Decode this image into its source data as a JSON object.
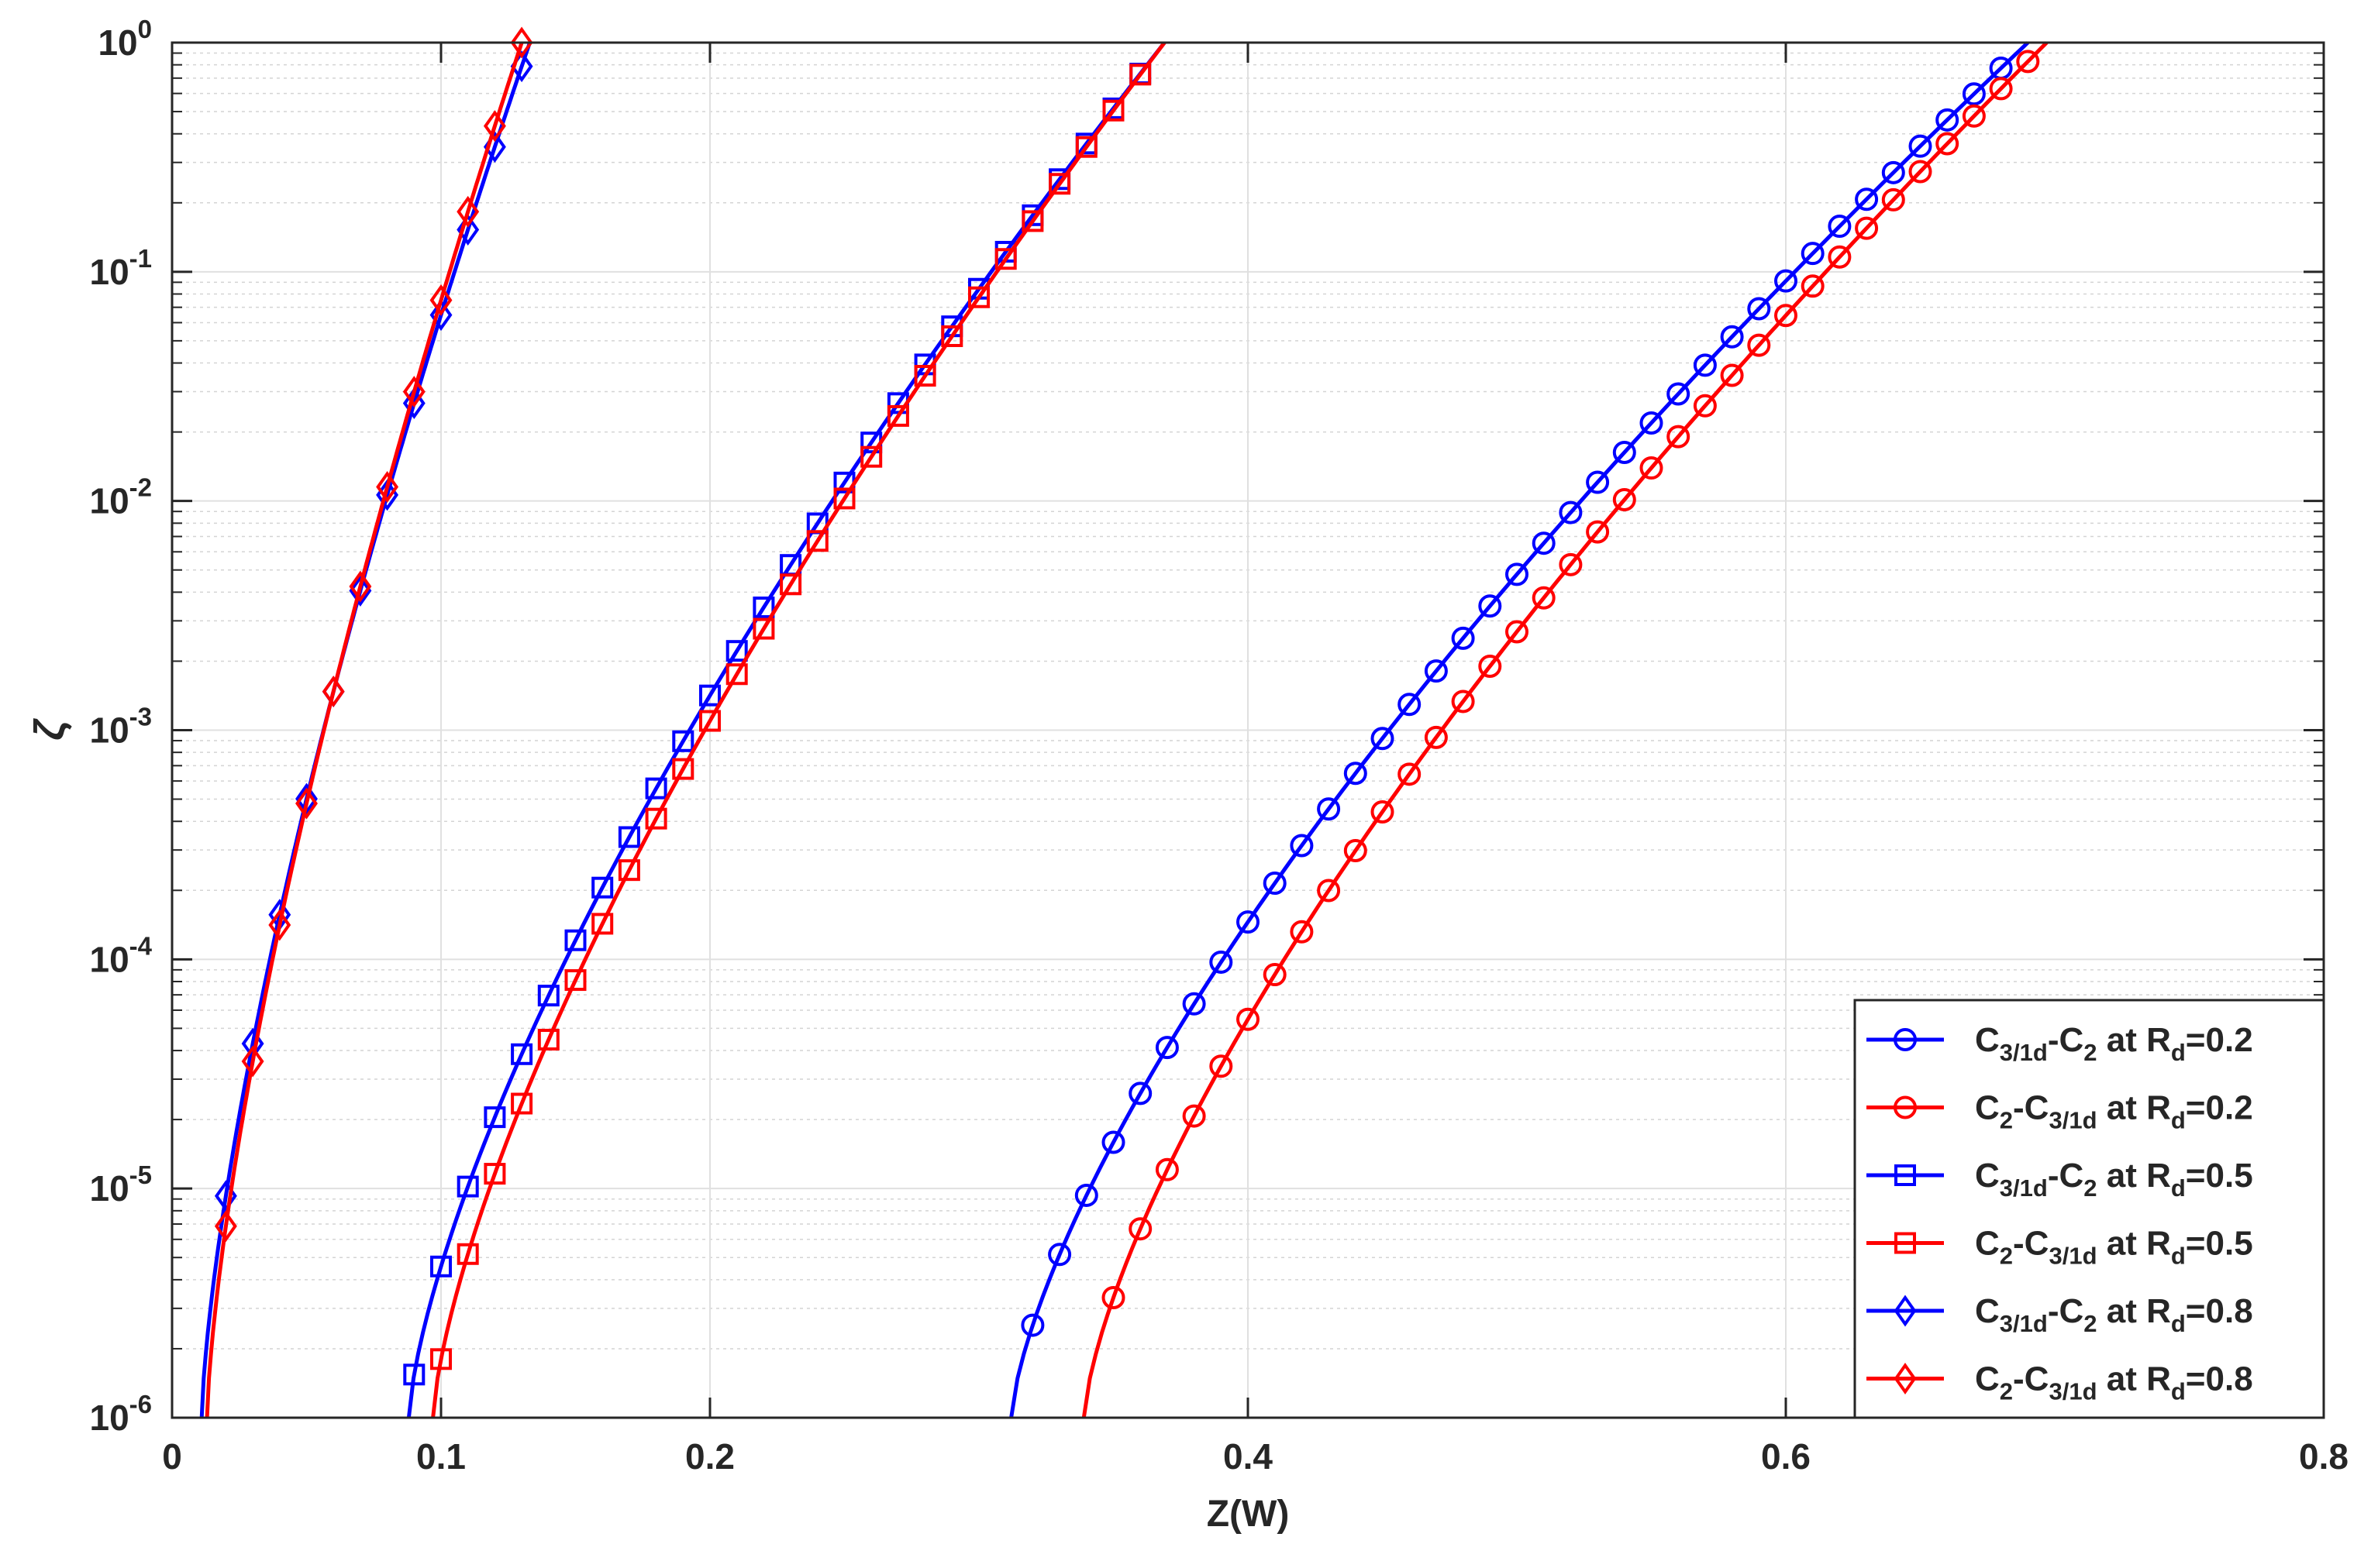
{
  "chart_data": {
    "type": "line",
    "title": "",
    "xlabel": "Z(W)",
    "ylabel": "ζ",
    "xlim": [
      0,
      0.8
    ],
    "ylim_log10": [
      -6,
      0
    ],
    "y_scale": "log",
    "grid": true,
    "minor_grid": true,
    "legend_position": "bottom-right",
    "x_ticks": [
      0,
      0.1,
      0.2,
      0.4,
      0.6,
      0.8
    ],
    "x_tick_labels": [
      "0",
      "0.1",
      "0.2",
      "0.4",
      "0.6",
      "0.8"
    ],
    "y_ticks": [
      -6,
      -5,
      -4,
      -3,
      -2,
      -1,
      0
    ],
    "y_tick_base": "10",
    "y_tick_exponents": [
      "-6",
      "-5",
      "-4",
      "-3",
      "-2",
      "-1",
      "0"
    ],
    "series": [
      {
        "name": "C3/1d-C2 at Rd=0.2",
        "legend": {
          "a": "C",
          "a_sub": "3/1d",
          "b": "-C",
          "b_sub": "2",
          "c": " at R",
          "c_sub": "d",
          "d": "=0.2"
        },
        "color": "#0000ff",
        "marker": "circle",
        "x_range": [
          0.312,
          0.69
        ],
        "log_y_range": [
          -6,
          0
        ],
        "marker_x": [
          0.32,
          0.33,
          0.34,
          0.35,
          0.36,
          0.37,
          0.38,
          0.39,
          0.4,
          0.41,
          0.42,
          0.43,
          0.44,
          0.45,
          0.46,
          0.47,
          0.48,
          0.49,
          0.5,
          0.51,
          0.52,
          0.53,
          0.54,
          0.55,
          0.56,
          0.57,
          0.58,
          0.59,
          0.6,
          0.61,
          0.62,
          0.63,
          0.64,
          0.65,
          0.66,
          0.67,
          0.68
        ]
      },
      {
        "name": "C2-C3/1d at Rd=0.2",
        "legend": {
          "a": "C",
          "a_sub": "2",
          "b": "-C",
          "b_sub": "3/1d",
          "c": " at R",
          "c_sub": "d",
          "d": "=0.2"
        },
        "color": "#ff0000",
        "marker": "circle",
        "x_range": [
          0.339,
          0.697
        ],
        "log_y_range": [
          -6,
          0
        ],
        "marker_x": [
          0.35,
          0.36,
          0.37,
          0.38,
          0.39,
          0.4,
          0.41,
          0.42,
          0.43,
          0.44,
          0.45,
          0.46,
          0.47,
          0.48,
          0.49,
          0.5,
          0.51,
          0.52,
          0.53,
          0.54,
          0.55,
          0.56,
          0.57,
          0.58,
          0.59,
          0.6,
          0.61,
          0.62,
          0.63,
          0.64,
          0.65,
          0.66,
          0.67,
          0.68,
          0.69
        ]
      },
      {
        "name": "C3/1d-C2 at Rd=0.5",
        "legend": {
          "a": "C",
          "a_sub": "3/1d",
          "b": "-C",
          "b_sub": "2",
          "c": " at R",
          "c_sub": "d",
          "d": "=0.5"
        },
        "color": "#0000ff",
        "marker": "square",
        "x_range": [
          0.088,
          0.369
        ],
        "log_y_range": [
          -6,
          0
        ],
        "marker_x": [
          0.09,
          0.1,
          0.11,
          0.12,
          0.13,
          0.14,
          0.15,
          0.16,
          0.17,
          0.18,
          0.19,
          0.2,
          0.21,
          0.22,
          0.23,
          0.24,
          0.25,
          0.26,
          0.27,
          0.28,
          0.29,
          0.3,
          0.31,
          0.32,
          0.33,
          0.34,
          0.35,
          0.36,
          0.37
        ]
      },
      {
        "name": "C2-C3/1d at Rd=0.5",
        "legend": {
          "a": "C",
          "a_sub": "2",
          "b": "-C",
          "b_sub": "3/1d",
          "c": " at R",
          "c_sub": "d",
          "d": "=0.5"
        },
        "color": "#ff0000",
        "marker": "square",
        "x_range": [
          0.097,
          0.369
        ],
        "log_y_range": [
          -6,
          0
        ],
        "marker_x": [
          0.1,
          0.11,
          0.12,
          0.13,
          0.14,
          0.15,
          0.16,
          0.17,
          0.18,
          0.19,
          0.2,
          0.21,
          0.22,
          0.23,
          0.24,
          0.25,
          0.26,
          0.27,
          0.28,
          0.29,
          0.3,
          0.31,
          0.32,
          0.33,
          0.34,
          0.35,
          0.36,
          0.37
        ]
      },
      {
        "name": "C3/1d-C2 at Rd=0.8",
        "legend": {
          "a": "C",
          "a_sub": "3/1d",
          "b": "-C",
          "b_sub": "2",
          "c": " at R",
          "c_sub": "d",
          "d": "=0.8"
        },
        "color": "#0000ff",
        "marker": "diamond",
        "x_range": [
          0.011,
          0.133
        ],
        "log_y_range": [
          -6,
          0
        ],
        "marker_x": [
          0.02,
          0.03,
          0.04,
          0.05,
          0.06,
          0.07,
          0.08,
          0.09,
          0.1,
          0.11,
          0.12,
          0.13
        ]
      },
      {
        "name": "C2-C3/1d at Rd=0.8",
        "legend": {
          "a": "C",
          "a_sub": "2",
          "b": "-C",
          "b_sub": "3/1d",
          "c": " at R",
          "c_sub": "d",
          "d": "=0.8"
        },
        "color": "#ff0000",
        "marker": "diamond",
        "x_range": [
          0.013,
          0.13
        ],
        "log_y_range": [
          -6,
          0
        ],
        "marker_x": [
          0.02,
          0.03,
          0.04,
          0.05,
          0.06,
          0.07,
          0.08,
          0.09,
          0.1,
          0.11,
          0.12,
          0.13
        ]
      }
    ]
  }
}
